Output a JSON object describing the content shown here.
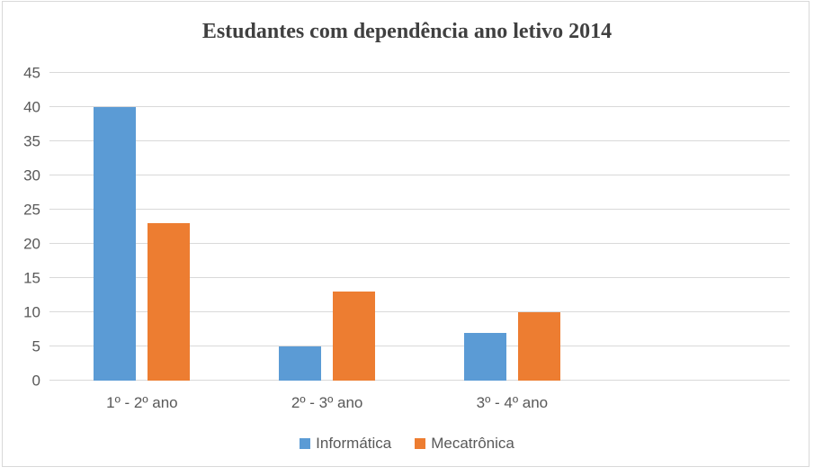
{
  "window": {
    "background": "#FFFFFF",
    "border_color": "#D9D9D9"
  },
  "chart_data": {
    "type": "bar",
    "title": "Estudantes com dependência ano letivo 2014",
    "categories": [
      "1º - 2º ano",
      "2º - 3º ano",
      "3º - 4º ano"
    ],
    "series": [
      {
        "name": "Informática",
        "color": "#5B9BD5",
        "values": [
          40,
          5,
          7
        ]
      },
      {
        "name": "Mecatrônica",
        "color": "#ED7D31",
        "values": [
          23,
          13,
          10
        ]
      }
    ],
    "xlabel": "",
    "ylabel": "",
    "ylim": [
      0,
      45
    ],
    "yticks": [
      45,
      40,
      35,
      30,
      25,
      20,
      15,
      10,
      5,
      0
    ],
    "grid": true,
    "gridline_color": "#D9D9D9",
    "axis_line_color": "#D9D9D9",
    "tick_label_color": "#595959",
    "title_color": "#404040",
    "legend_position": "bottom",
    "legend_text_color": "#595959",
    "x_slots": 4
  }
}
